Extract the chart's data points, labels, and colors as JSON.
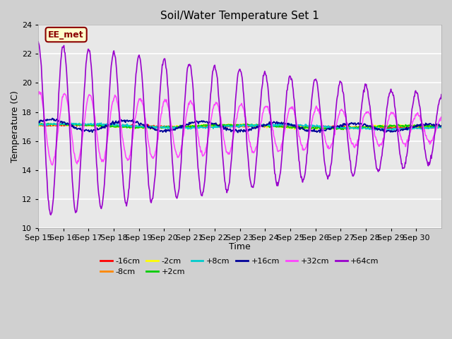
{
  "title": "Soil/Water Temperature Set 1",
  "xlabel": "Time",
  "ylabel": "Temperature (C)",
  "ylim": [
    10,
    24
  ],
  "yticks": [
    10,
    12,
    14,
    16,
    18,
    20,
    22,
    24
  ],
  "annotation_text": "EE_met",
  "annotation_facecolor": "#ffffcc",
  "annotation_edgecolor": "#8B0000",
  "annotation_textcolor": "#8B0000",
  "fig_bg": "#d0d0d0",
  "ax_bg": "#e8e8e8",
  "grid_color": "#ffffff",
  "series_colors": {
    "-16cm": "#ff0000",
    "-8cm": "#ff8800",
    "-2cm": "#ffff00",
    "+2cm": "#00cc00",
    "+8cm": "#00cccc",
    "+16cm": "#000099",
    "+32cm": "#ff44ff",
    "+64cm": "#9900cc"
  },
  "legend_order": [
    "-16cm",
    "-8cm",
    "-2cm",
    "+2cm",
    "+8cm",
    "+16cm",
    "+32cm",
    "+64cm"
  ],
  "xticklabels": [
    "Sep 15",
    "Sep 16",
    "Sep 17",
    "Sep 18",
    "Sep 19",
    "Sep 20",
    "Sep 21",
    "Sep 22",
    "Sep 23",
    "Sep 24",
    "Sep 25",
    "Sep 26",
    "Sep 27",
    "Sep 28",
    "Sep 29",
    "Sep 30"
  ],
  "n_days": 16,
  "pts_per_day": 48
}
